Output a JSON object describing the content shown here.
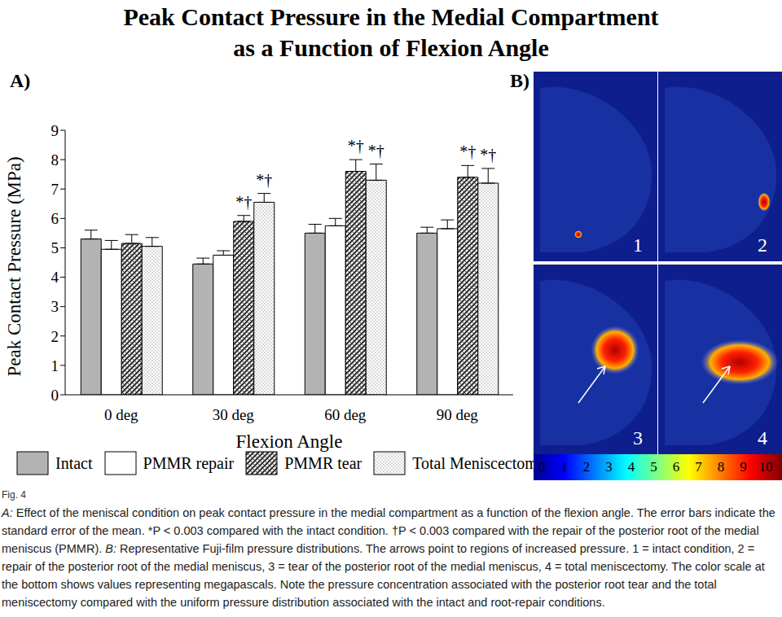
{
  "title_lines": [
    "Peak Contact Pressure in the Medial Compartment",
    "as a Function of Flexion Angle"
  ],
  "panel_a_label": "A)",
  "panel_b_label": "B)",
  "chart_data": {
    "type": "bar",
    "categories": [
      "0 deg",
      "30 deg",
      "60 deg",
      "90 deg"
    ],
    "x_label": "Flexion Angle",
    "y_label": "Peak Contact Pressure (MPa)",
    "ylim": [
      0,
      9
    ],
    "yticks": [
      0,
      1,
      2,
      3,
      4,
      5,
      6,
      7,
      8,
      9
    ],
    "grid": false,
    "legend": "bottom",
    "series": [
      {
        "name": "Intact",
        "color": "#b3b3b3",
        "values": [
          5.3,
          4.45,
          5.5,
          5.5
        ],
        "errors": [
          0.3,
          0.2,
          0.3,
          0.2
        ]
      },
      {
        "name": "PMMR repair",
        "color": "#ffffff",
        "values": [
          4.95,
          4.75,
          5.75,
          5.65
        ],
        "errors": [
          0.3,
          0.15,
          0.25,
          0.3
        ]
      },
      {
        "name": "PMMR tear",
        "color": "#333333",
        "values": [
          5.15,
          5.9,
          7.6,
          7.4
        ],
        "errors": [
          0.3,
          0.2,
          0.4,
          0.4
        ],
        "significance": [
          null,
          "*†",
          "*†",
          "*†"
        ]
      },
      {
        "name": "Total Meniscectomy",
        "color": "#999999",
        "values": [
          5.05,
          6.55,
          7.3,
          7.2
        ],
        "errors": [
          0.3,
          0.3,
          0.55,
          0.5
        ],
        "significance": [
          null,
          "*†",
          "*†",
          "*†"
        ]
      }
    ]
  },
  "panel_b": {
    "image_labels": [
      "1",
      "2",
      "3",
      "4"
    ],
    "colorbar": {
      "range": [
        0,
        10
      ],
      "ticks": [
        0,
        1,
        2,
        3,
        4,
        5,
        6,
        7,
        8,
        9,
        10
      ]
    }
  },
  "caption": {
    "figure_label": "Fig. 4",
    "label_a": "A:",
    "text_a": "Effect of the meniscal condition on peak contact pressure in the medial compartment as a function of the flexion angle. The error bars indicate the standard error of the mean. *P < 0.003 compared with the intact condition. †P < 0.003 compared with the repair of the posterior root of the medial meniscus (PMMR).",
    "label_b": "B:",
    "text_b": "Representative Fuji-film pressure distributions. The arrows point to regions of increased pressure. 1 = intact condition, 2 = repair of the posterior root of the medial meniscus, 3 = tear of the posterior root of the medial meniscus, 4 = total meniscectomy. The color scale at the bottom shows values representing megapascals. Note the pressure concentration associated with the posterior root tear and the total meniscectomy compared with the uniform pressure distribution associated with the intact and root-repair conditions."
  }
}
